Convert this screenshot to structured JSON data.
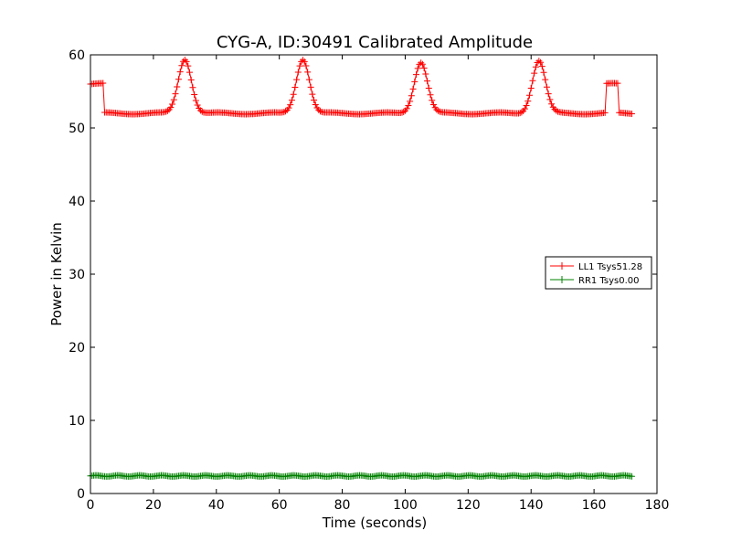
{
  "chart_data": {
    "type": "line",
    "title": "CYG-A, ID:30491 Calibrated Amplitude",
    "xlabel": "Time (seconds)",
    "ylabel": "Power in Kelvin",
    "xlim": [
      0,
      180
    ],
    "ylim": [
      0,
      60
    ],
    "xticks": [
      0,
      20,
      40,
      60,
      80,
      100,
      120,
      140,
      160,
      180
    ],
    "yticks": [
      0,
      10,
      20,
      30,
      40,
      50,
      60
    ],
    "grid": false,
    "legend_position": "right",
    "marker": "+",
    "series": [
      {
        "name": "LL1 Tsys51.28",
        "color": "#ff0000",
        "segments": [
          {
            "x_start": 0,
            "x_end": 4.5,
            "value": 56.0
          },
          {
            "x_start": 4.5,
            "x_end": 163.7,
            "value": 52.0
          },
          {
            "x_start": 163.7,
            "x_end": 167.8,
            "value": 56.0
          },
          {
            "x_start": 167.8,
            "x_end": 172.0,
            "value": 52.0
          }
        ],
        "peaks": [
          {
            "x": 30.0,
            "value": 59.4
          },
          {
            "x": 67.5,
            "value": 59.4
          },
          {
            "x": 105.0,
            "value": 59.0
          },
          {
            "x": 142.5,
            "value": 59.2
          }
        ]
      },
      {
        "name": "RR1 Tsys0.00",
        "color": "#008000",
        "x_range": [
          0,
          172
        ],
        "value": 2.4
      }
    ]
  }
}
